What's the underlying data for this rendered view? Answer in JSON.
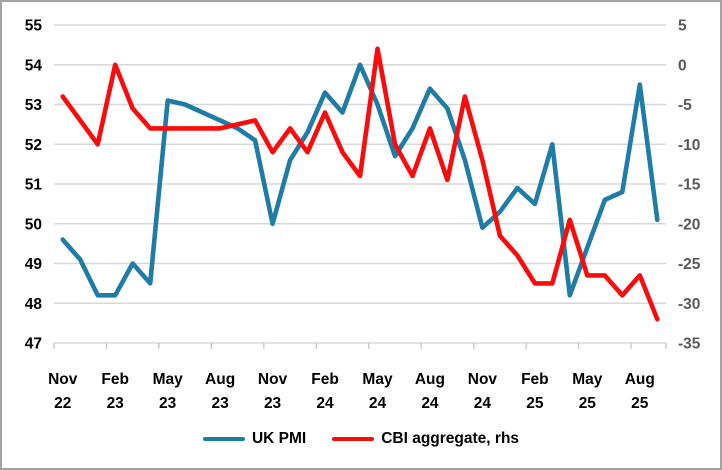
{
  "frame": {
    "background": "#ffffff",
    "border_color": "#a3a3a3",
    "gridline_color": "#d8d8d8",
    "axis_line_color": "#c9c9c9"
  },
  "chart_data": {
    "type": "line",
    "title": "",
    "grid": true,
    "legend_position": "bottom",
    "x": [
      "Nov 22",
      "Dec 22",
      "Jan 23",
      "Feb 23",
      "Mar 23",
      "Apr 23",
      "May 23",
      "Jun 23",
      "Jul 23",
      "Aug 23",
      "Sep 23",
      "Oct 23",
      "Nov 23",
      "Dec 23",
      "Jan 24",
      "Feb 24",
      "Mar 24",
      "Apr 24",
      "May 24",
      "Jun 24",
      "Jul 24",
      "Aug 24",
      "Sep 24",
      "Oct 24",
      "Nov 24",
      "Dec 24",
      "Jan 25",
      "Feb 25",
      "Mar 25",
      "Apr 25",
      "May 25",
      "Jun 25",
      "Jul 25",
      "Aug 25",
      "Sep 25"
    ],
    "series": [
      {
        "name": "UK PMI",
        "axis": "left",
        "color": "#1e7ca7",
        "values": [
          49.6,
          49.1,
          48.2,
          48.2,
          49.0,
          48.5,
          53.1,
          53.0,
          52.8,
          52.6,
          52.4,
          52.1,
          50.0,
          51.6,
          52.3,
          53.3,
          52.8,
          54.0,
          53.0,
          51.7,
          52.4,
          53.4,
          52.9,
          51.6,
          49.9,
          50.3,
          50.9,
          50.5,
          52.0,
          48.2,
          49.4,
          50.6,
          50.8,
          53.5,
          50.1
        ]
      },
      {
        "name": "CBI aggregate, rhs",
        "axis": "right",
        "color": "#fb0b0b",
        "values": [
          -4,
          -7,
          -10,
          0,
          -5.5,
          -8,
          -8,
          -8,
          -8,
          -8,
          -7.5,
          -7,
          -11,
          -8,
          -11,
          -6,
          -11,
          -14,
          2,
          -10,
          -14,
          -8,
          -14.5,
          -4,
          -12,
          -21.5,
          -24,
          -27.5,
          -27.5,
          -19.5,
          -26.5,
          -26.5,
          -29,
          -26.5,
          -32
        ]
      }
    ],
    "left_axis": {
      "min": 47,
      "max": 55,
      "tick_labels": [
        "55",
        "54",
        "53",
        "52",
        "51",
        "50",
        "49",
        "48",
        "47"
      ],
      "label_color": "#000000"
    },
    "right_axis": {
      "min": -35,
      "max": 5,
      "tick_labels": [
        "5",
        "0",
        "-5",
        "-10",
        "-15",
        "-20",
        "-25",
        "-30",
        "-35"
      ],
      "label_color": "#595959"
    },
    "x_tick_labels": [
      {
        "month": "Nov",
        "year": "22",
        "index": 0
      },
      {
        "month": "Feb",
        "year": "23",
        "index": 3
      },
      {
        "month": "May",
        "year": "23",
        "index": 6
      },
      {
        "month": "Aug",
        "year": "23",
        "index": 9
      },
      {
        "month": "Nov",
        "year": "23",
        "index": 12
      },
      {
        "month": "Feb",
        "year": "24",
        "index": 15
      },
      {
        "month": "May",
        "year": "24",
        "index": 18
      },
      {
        "month": "Aug",
        "year": "24",
        "index": 21
      },
      {
        "month": "Nov",
        "year": "24",
        "index": 24
      },
      {
        "month": "Feb",
        "year": "25",
        "index": 27
      },
      {
        "month": "May",
        "year": "25",
        "index": 30
      },
      {
        "month": "Aug",
        "year": "25",
        "index": 33
      }
    ]
  },
  "legend": {
    "items": [
      {
        "label": "UK PMI"
      },
      {
        "label": "CBI aggregate, rhs"
      }
    ]
  }
}
